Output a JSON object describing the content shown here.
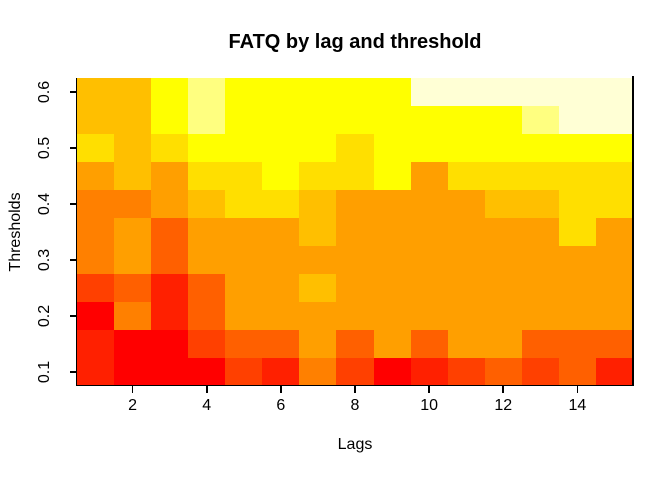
{
  "title": "FATQ by lag and threshold",
  "x_axis": {
    "label": "Lags",
    "ticks": [
      2,
      4,
      6,
      8,
      10,
      12,
      14
    ]
  },
  "y_axis": {
    "label": "Thresholds",
    "ticks": [
      0.1,
      0.2,
      0.3,
      0.4,
      0.5,
      0.6
    ]
  },
  "chart_data": {
    "type": "heatmap",
    "title": "FATQ by lag and threshold",
    "xlabel": "Lags",
    "ylabel": "Thresholds",
    "x_values": [
      1,
      2,
      3,
      4,
      5,
      6,
      7,
      8,
      9,
      10,
      11,
      12,
      13,
      14,
      15
    ],
    "y_values_top_to_bottom": [
      0.6,
      0.55,
      0.5,
      0.45,
      0.4,
      0.35,
      0.3,
      0.25,
      0.2,
      0.15,
      0.1
    ],
    "xlim": [
      0.5,
      15.5
    ],
    "ylim": [
      0.075,
      0.625
    ],
    "grid": false,
    "legend": "none",
    "palette_name": "heat-colors-12-red-to-cream",
    "palette": [
      "#FF0000",
      "#FF2000",
      "#FF4000",
      "#FF6000",
      "#FF8000",
      "#FF9F00",
      "#FFBF00",
      "#FFDF00",
      "#FFFF00",
      "#FFFF2A",
      "#FFFF80",
      "#FFFFD5"
    ],
    "cell_palette_index_rows_top_to_bottom": [
      [
        7,
        7,
        9,
        11,
        9,
        9,
        9,
        9,
        9,
        12,
        12,
        12,
        12,
        12,
        12
      ],
      [
        7,
        7,
        9,
        11,
        9,
        9,
        9,
        9,
        9,
        9,
        9,
        9,
        11,
        12,
        12
      ],
      [
        8,
        7,
        8,
        9,
        9,
        9,
        9,
        8,
        9,
        9,
        9,
        9,
        9,
        9,
        9
      ],
      [
        6,
        7,
        6,
        8,
        8,
        9,
        8,
        8,
        9,
        6,
        8,
        8,
        8,
        8,
        8
      ],
      [
        5,
        5,
        6,
        7,
        8,
        8,
        7,
        6,
        6,
        6,
        6,
        7,
        7,
        8,
        8
      ],
      [
        5,
        6,
        4,
        6,
        6,
        6,
        7,
        6,
        6,
        6,
        6,
        6,
        6,
        8,
        6
      ],
      [
        5,
        6,
        4,
        6,
        6,
        6,
        6,
        6,
        6,
        6,
        6,
        6,
        6,
        6,
        6
      ],
      [
        3,
        4,
        2,
        4,
        6,
        6,
        7,
        6,
        6,
        6,
        6,
        6,
        6,
        6,
        6
      ],
      [
        1,
        5,
        2,
        4,
        6,
        6,
        6,
        6,
        6,
        6,
        6,
        6,
        6,
        6,
        6
      ],
      [
        2,
        1,
        1,
        3,
        4,
        4,
        6,
        4,
        6,
        4,
        6,
        6,
        4,
        4,
        4
      ],
      [
        2,
        1,
        1,
        1,
        3,
        2,
        5,
        3,
        1,
        2,
        3,
        4,
        3,
        4,
        2
      ]
    ],
    "axis_color": "#000000",
    "background_color": "#FFFFFF"
  }
}
